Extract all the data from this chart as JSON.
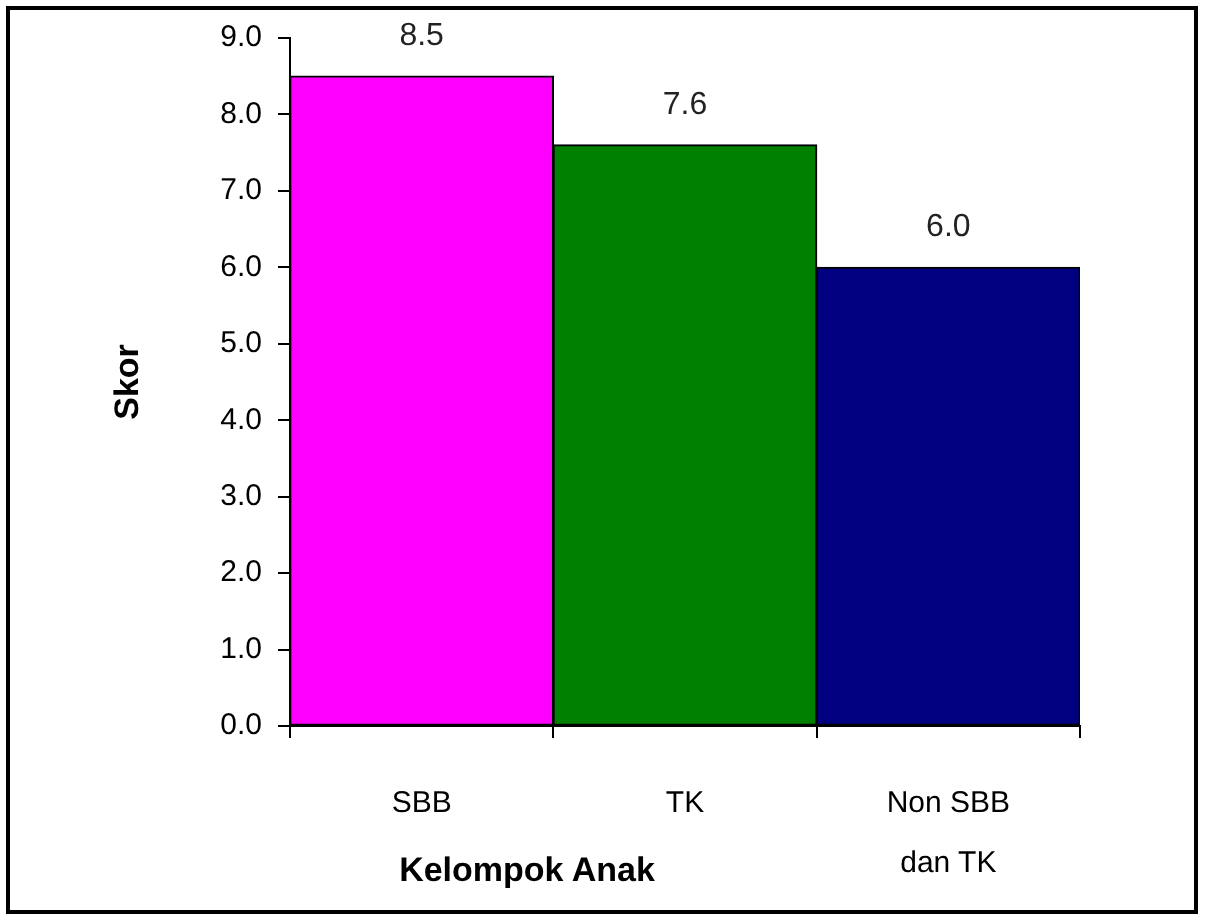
{
  "chart_data": {
    "type": "bar",
    "categories": [
      "SBB",
      "TK",
      "Non SBB dan TK"
    ],
    "values": [
      8.5,
      7.6,
      6.0
    ],
    "colors": [
      "#ff00ff",
      "#008000",
      "#000080"
    ],
    "value_labels": [
      "8.5",
      "7.6",
      "6.0"
    ],
    "xlabel": "Kelompok Anak",
    "ylabel": "Skor",
    "ylim": [
      0,
      9
    ],
    "yticks": [
      {
        "value": 0,
        "label": "0.0"
      },
      {
        "value": 1,
        "label": "1.0"
      },
      {
        "value": 2,
        "label": "2.0"
      },
      {
        "value": 3,
        "label": "3.0"
      },
      {
        "value": 4,
        "label": "4.0"
      },
      {
        "value": 5,
        "label": "5.0"
      },
      {
        "value": 6,
        "label": "6.0"
      },
      {
        "value": 7,
        "label": "7.0"
      },
      {
        "value": 8,
        "label": "8.0"
      },
      {
        "value": 9,
        "label": "9.0"
      }
    ]
  }
}
